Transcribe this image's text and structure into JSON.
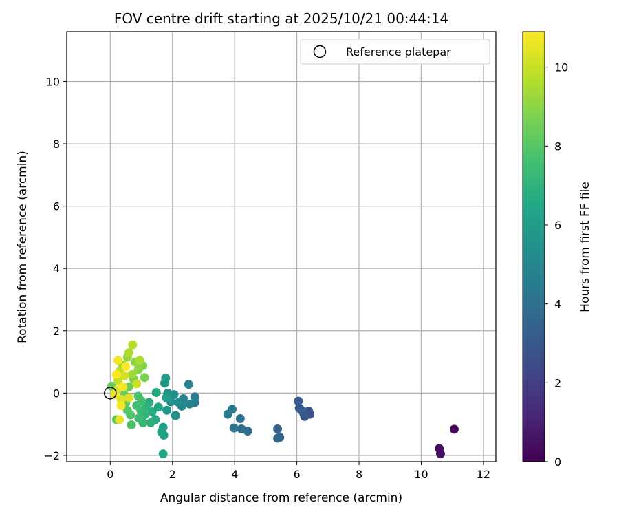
{
  "chart_data": {
    "type": "scatter",
    "title": "FOV centre drift starting at 2025/10/21 00:44:14",
    "xlabel": "Angular distance from reference (arcmin)",
    "ylabel": "Rotation from reference (arcmin)",
    "xlim": [
      -1.4,
      12.4
    ],
    "ylim": [
      -2.2,
      11.6
    ],
    "xticks": [
      "0",
      "2",
      "4",
      "6",
      "8",
      "10",
      "12"
    ],
    "yticks": [
      "−2",
      "0",
      "2",
      "4",
      "6",
      "8",
      "10"
    ],
    "grid": true,
    "legend": {
      "placement": "top-right",
      "entries": [
        "Reference platepar"
      ]
    },
    "reference_point": {
      "x": 0,
      "y": 0
    },
    "colorbar": {
      "label": "Hours from first FF file",
      "range": [
        0,
        10.9
      ],
      "ticks": [
        "0",
        "2",
        "4",
        "6",
        "8",
        "10"
      ],
      "colormap": "viridis"
    },
    "points": [
      {
        "x": 11.06,
        "y": -1.16,
        "h": 0.2
      },
      {
        "x": 10.58,
        "y": -1.78,
        "h": 0.3
      },
      {
        "x": 10.62,
        "y": -1.95,
        "h": 0.4
      },
      {
        "x": 6.38,
        "y": -0.58,
        "h": 2.6
      },
      {
        "x": 6.42,
        "y": -0.68,
        "h": 2.7
      },
      {
        "x": 6.22,
        "y": -0.65,
        "h": 2.8
      },
      {
        "x": 6.25,
        "y": -0.75,
        "h": 2.9
      },
      {
        "x": 6.08,
        "y": -0.48,
        "h": 3.0
      },
      {
        "x": 6.05,
        "y": -0.26,
        "h": 3.1
      },
      {
        "x": 6.15,
        "y": -0.55,
        "h": 3.2
      },
      {
        "x": 5.38,
        "y": -1.15,
        "h": 3.4
      },
      {
        "x": 5.45,
        "y": -1.42,
        "h": 3.5
      },
      {
        "x": 5.38,
        "y": -1.45,
        "h": 3.6
      },
      {
        "x": 4.42,
        "y": -1.22,
        "h": 3.9
      },
      {
        "x": 4.22,
        "y": -1.15,
        "h": 4.0
      },
      {
        "x": 4.18,
        "y": -0.82,
        "h": 4.1
      },
      {
        "x": 3.98,
        "y": -1.12,
        "h": 4.2
      },
      {
        "x": 3.92,
        "y": -0.52,
        "h": 4.3
      },
      {
        "x": 3.78,
        "y": -0.68,
        "h": 4.4
      },
      {
        "x": 2.72,
        "y": -0.12,
        "h": 4.6
      },
      {
        "x": 2.72,
        "y": -0.3,
        "h": 4.7
      },
      {
        "x": 2.52,
        "y": 0.28,
        "h": 4.8
      },
      {
        "x": 2.55,
        "y": -0.35,
        "h": 4.9
      },
      {
        "x": 2.35,
        "y": -0.18,
        "h": 5.0
      },
      {
        "x": 2.3,
        "y": -0.42,
        "h": 5.1
      },
      {
        "x": 2.2,
        "y": -0.3,
        "h": 5.2
      },
      {
        "x": 2.05,
        "y": -0.05,
        "h": 5.3
      },
      {
        "x": 2.1,
        "y": -0.72,
        "h": 5.4
      },
      {
        "x": 1.95,
        "y": -0.28,
        "h": 5.5
      },
      {
        "x": 1.85,
        "y": 0.0,
        "h": 5.6
      },
      {
        "x": 1.82,
        "y": -0.55,
        "h": 5.7
      },
      {
        "x": 1.78,
        "y": 0.48,
        "h": 5.8
      },
      {
        "x": 1.75,
        "y": 0.32,
        "h": 5.9
      },
      {
        "x": 1.8,
        "y": -0.15,
        "h": 6.0
      },
      {
        "x": 1.7,
        "y": -1.1,
        "h": 6.1
      },
      {
        "x": 1.72,
        "y": -1.35,
        "h": 6.2
      },
      {
        "x": 1.65,
        "y": -1.25,
        "h": 6.3
      },
      {
        "x": 1.55,
        "y": -0.45,
        "h": 6.4
      },
      {
        "x": 1.45,
        "y": -0.85,
        "h": 6.5
      },
      {
        "x": 1.48,
        "y": 0.02,
        "h": 6.6
      },
      {
        "x": 1.35,
        "y": -0.6,
        "h": 6.7
      },
      {
        "x": 1.25,
        "y": -0.3,
        "h": 6.8
      },
      {
        "x": 1.3,
        "y": -0.95,
        "h": 6.9
      },
      {
        "x": 1.15,
        "y": -0.45,
        "h": 7.0
      },
      {
        "x": 1.7,
        "y": -1.95,
        "h": 6.4
      },
      {
        "x": 1.1,
        "y": -0.7,
        "h": 7.1
      },
      {
        "x": 1.05,
        "y": -0.95,
        "h": 7.2
      },
      {
        "x": 0.98,
        "y": -0.55,
        "h": 7.3
      },
      {
        "x": 0.92,
        "y": -0.8,
        "h": 7.4
      },
      {
        "x": 1.0,
        "y": -0.25,
        "h": 7.5
      },
      {
        "x": 0.85,
        "y": -0.4,
        "h": 7.6
      },
      {
        "x": 0.9,
        "y": -0.1,
        "h": 7.7
      },
      {
        "x": 0.68,
        "y": -1.02,
        "h": 7.8
      },
      {
        "x": 0.65,
        "y": -0.7,
        "h": 7.9
      },
      {
        "x": 0.55,
        "y": -0.55,
        "h": 8.0
      },
      {
        "x": 0.5,
        "y": -0.3,
        "h": 8.1
      },
      {
        "x": 0.2,
        "y": -0.85,
        "h": 8.2
      },
      {
        "x": 0.05,
        "y": 0.22,
        "h": 8.3
      },
      {
        "x": 0.45,
        "y": -0.05,
        "h": 8.4
      },
      {
        "x": 0.6,
        "y": 0.2,
        "h": 8.5
      },
      {
        "x": 0.75,
        "y": 0.45,
        "h": 8.6
      },
      {
        "x": 1.1,
        "y": 0.5,
        "h": 8.7
      },
      {
        "x": 1.05,
        "y": 0.88,
        "h": 8.8
      },
      {
        "x": 0.9,
        "y": 0.75,
        "h": 9.0
      },
      {
        "x": 0.8,
        "y": 1.0,
        "h": 9.1
      },
      {
        "x": 0.55,
        "y": 1.15,
        "h": 9.2
      },
      {
        "x": 0.4,
        "y": 0.9,
        "h": 9.3
      },
      {
        "x": 0.7,
        "y": 0.6,
        "h": 9.4
      },
      {
        "x": 0.95,
        "y": 1.05,
        "h": 9.5
      },
      {
        "x": 0.6,
        "y": 1.3,
        "h": 9.6
      },
      {
        "x": 0.72,
        "y": 1.55,
        "h": 9.7
      },
      {
        "x": 0.3,
        "y": 0.7,
        "h": 9.8
      },
      {
        "x": 0.25,
        "y": 0.4,
        "h": 9.9
      },
      {
        "x": 0.85,
        "y": 0.3,
        "h": 10.0
      },
      {
        "x": 0.2,
        "y": 0.1,
        "h": 10.1
      },
      {
        "x": 0.45,
        "y": 0.55,
        "h": 10.2
      },
      {
        "x": 0.35,
        "y": -0.2,
        "h": 10.3
      },
      {
        "x": 0.6,
        "y": -0.15,
        "h": 10.4
      },
      {
        "x": 0.3,
        "y": -0.85,
        "h": 10.5
      },
      {
        "x": 0.15,
        "y": -0.05,
        "h": 10.6
      },
      {
        "x": 0.25,
        "y": 1.05,
        "h": 10.7
      },
      {
        "x": 0.4,
        "y": 0.2,
        "h": 10.8
      },
      {
        "x": 0.2,
        "y": 0.6,
        "h": 10.9
      },
      {
        "x": 0.5,
        "y": 0.85,
        "h": 10.9
      },
      {
        "x": 0.35,
        "y": -0.4,
        "h": 10.8
      }
    ]
  }
}
